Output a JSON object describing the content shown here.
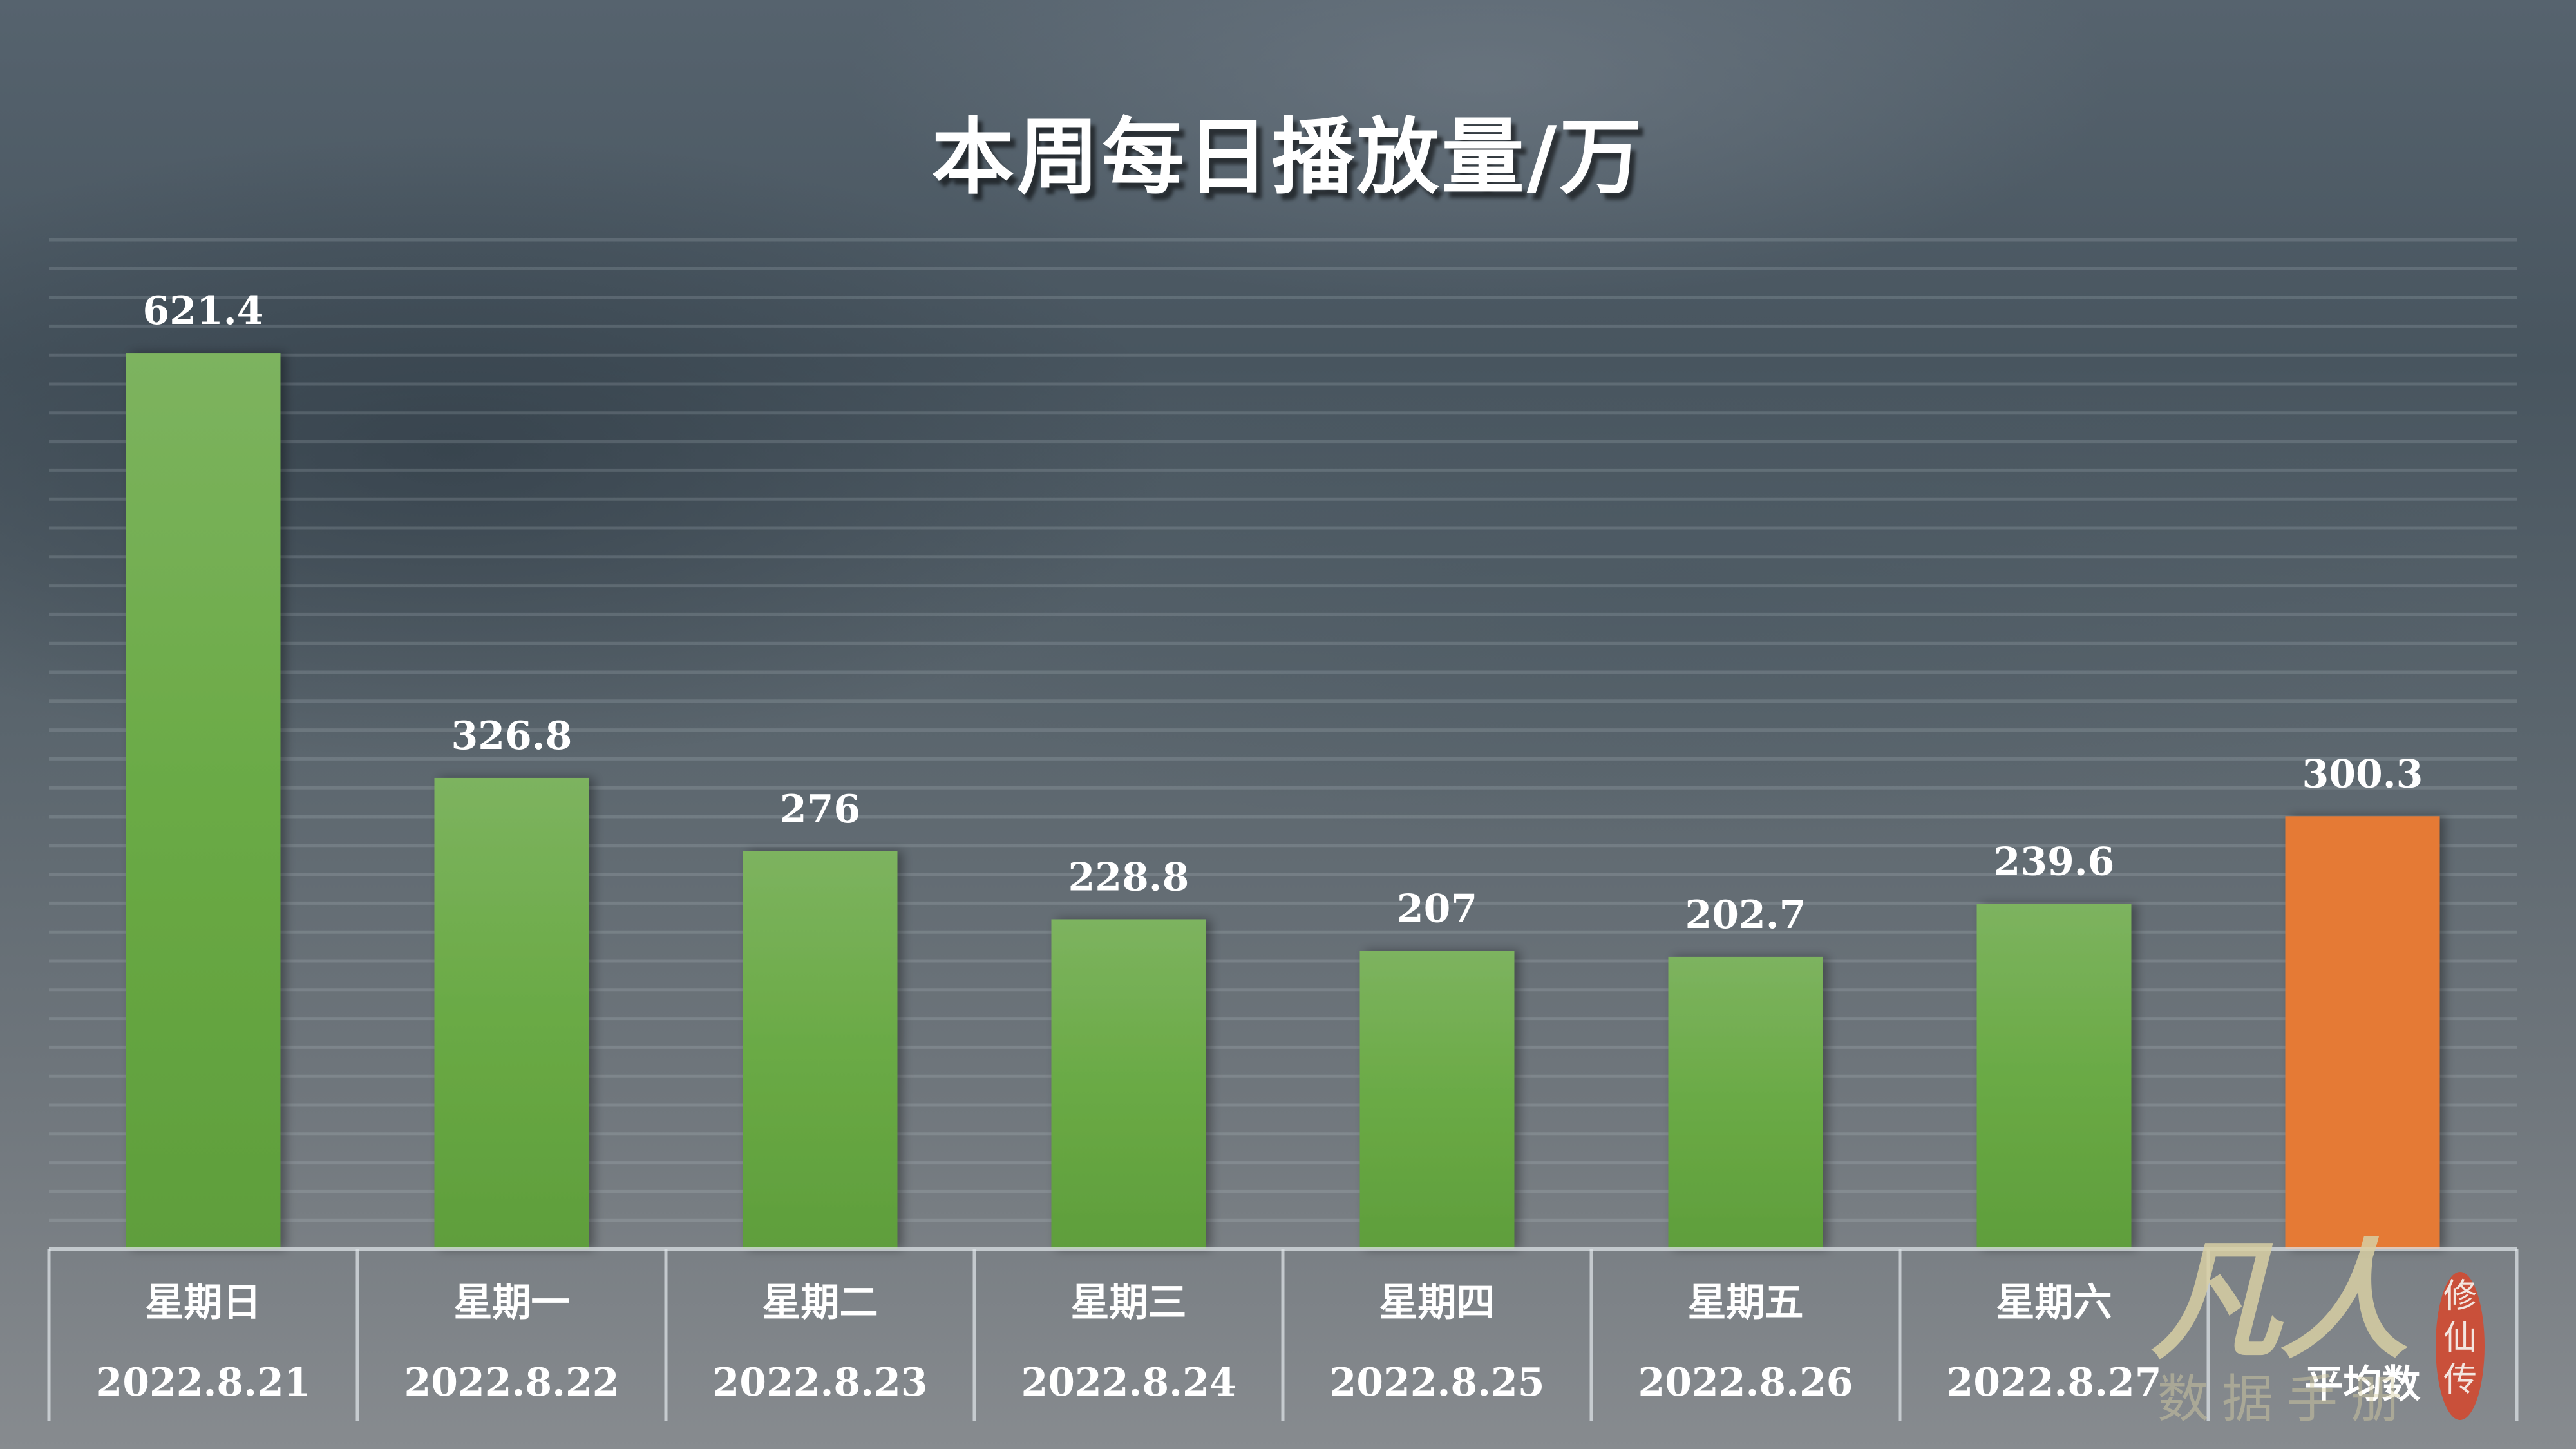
{
  "chart_data": {
    "type": "bar",
    "title": "本周每日播放量/万",
    "categories": [
      "星期日",
      "星期一",
      "星期二",
      "星期三",
      "星期四",
      "星期五",
      "星期六",
      "平均数"
    ],
    "dates": [
      "2022.8.21",
      "2022.8.22",
      "2022.8.23",
      "2022.8.24",
      "2022.8.25",
      "2022.8.26",
      "2022.8.27",
      ""
    ],
    "values": [
      621.4,
      326.8,
      276,
      228.8,
      207,
      202.7,
      239.6,
      300.3
    ],
    "data_labels": [
      "621.4",
      "326.8",
      "276",
      "228.8",
      "207",
      "202.7",
      "239.6",
      "300.3"
    ],
    "colors": [
      "#6aaa45",
      "#6aaa45",
      "#6aaa45",
      "#6aaa45",
      "#6aaa45",
      "#6aaa45",
      "#6aaa45",
      "#e57a35"
    ],
    "ylim": [
      0,
      700
    ],
    "grid": true,
    "xlabel": "",
    "ylabel": ""
  },
  "watermark": {
    "logo_text": "凡人修仙传",
    "sub_text": "数据手册"
  }
}
